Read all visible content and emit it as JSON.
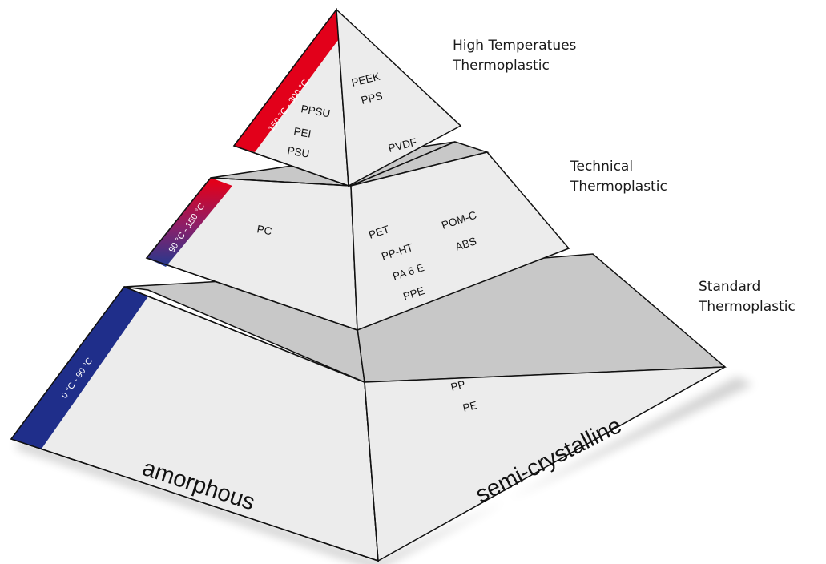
{
  "tiers": {
    "top": {
      "category": [
        "High Temperatues",
        "Thermoplastic"
      ],
      "temperature": "150 °C - 300 °C",
      "amorphous_materials": [
        "PPSU",
        "PEI",
        "PSU"
      ],
      "semicrystalline_materials": [
        "PEEK",
        "PPS",
        "PVDF"
      ],
      "band_color": "#e2001a"
    },
    "middle": {
      "category": [
        "Technical",
        "Thermoplastic"
      ],
      "temperature": "90 °C - 150 °C",
      "amorphous_materials": [
        "PC"
      ],
      "semicrystalline_materials": [
        "PET",
        "PP-HT",
        "PA 6 E",
        "PPE",
        "POM-C",
        "ABS"
      ],
      "band_color_top": "#e2001a",
      "band_color_bottom": "#233a8f"
    },
    "bottom": {
      "category": [
        "Standard",
        "Thermoplastic"
      ],
      "temperature": "0 °C - 90 °C",
      "amorphous_materials": [],
      "semicrystalline_materials": [
        "PP",
        "PE"
      ],
      "band_color": "#1f2e8a"
    }
  },
  "faces": {
    "left": "amorphous",
    "right": "semi-crystalline"
  },
  "colors": {
    "face": "#ececec",
    "ledge": "#c8c8c8",
    "edge": "#111111"
  }
}
